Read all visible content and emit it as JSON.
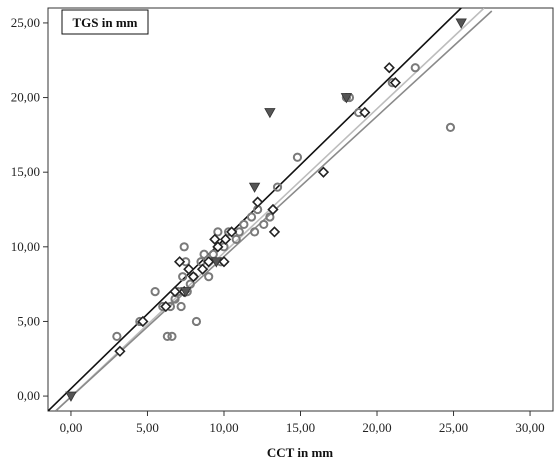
{
  "chart_data": {
    "type": "scatter",
    "title": "",
    "xlabel": "CCT in mm",
    "ylabel": "TGS in mm",
    "xlim": [
      -1.5,
      31.5
    ],
    "ylim": [
      -1.0,
      26.0
    ],
    "x_ticks": [
      0,
      5,
      10,
      15,
      20,
      25,
      30
    ],
    "y_ticks": [
      0,
      5,
      10,
      15,
      20,
      25
    ],
    "x_tick_labels": [
      "0,00",
      "5,00",
      "10,00",
      "15,00",
      "20,00",
      "25,00",
      "30,00"
    ],
    "y_tick_labels": [
      "0,00",
      "5,00",
      "10,00",
      "15,00",
      "20,00",
      "25,00"
    ],
    "grid": false,
    "legend": "none",
    "colors": {
      "circle_series": "#7a7a7a",
      "diamond_series": "#222222",
      "triangle_series": "#555555",
      "identity_line": "#111111",
      "fit_line_light": "#bdbdbd",
      "fit_line_mid": "#8a8a8a"
    },
    "series": [
      {
        "marker": "circle",
        "points": [
          [
            3.0,
            4.0
          ],
          [
            4.5,
            5.0
          ],
          [
            5.5,
            7.0
          ],
          [
            6.0,
            6.0
          ],
          [
            6.3,
            4.0
          ],
          [
            6.6,
            4.0
          ],
          [
            6.5,
            6.0
          ],
          [
            6.8,
            6.5
          ],
          [
            7.0,
            7.0
          ],
          [
            7.2,
            6.0
          ],
          [
            7.3,
            8.0
          ],
          [
            7.4,
            10.0
          ],
          [
            7.5,
            9.0
          ],
          [
            7.6,
            7.0
          ],
          [
            7.8,
            7.5
          ],
          [
            8.0,
            8.0
          ],
          [
            8.2,
            5.0
          ],
          [
            8.5,
            9.0
          ],
          [
            8.7,
            9.5
          ],
          [
            9.0,
            8.0
          ],
          [
            9.3,
            9.5
          ],
          [
            9.6,
            11.0
          ],
          [
            9.8,
            9.0
          ],
          [
            10.0,
            10.0
          ],
          [
            10.3,
            11.0
          ],
          [
            10.8,
            10.5
          ],
          [
            11.0,
            11.0
          ],
          [
            11.3,
            11.5
          ],
          [
            11.8,
            12.0
          ],
          [
            12.0,
            11.0
          ],
          [
            12.2,
            12.5
          ],
          [
            12.6,
            11.5
          ],
          [
            13.0,
            12.0
          ],
          [
            13.5,
            14.0
          ],
          [
            14.8,
            16.0
          ],
          [
            18.0,
            20.0
          ],
          [
            18.2,
            20.0
          ],
          [
            18.8,
            19.0
          ],
          [
            21.0,
            21.0
          ],
          [
            22.5,
            22.0
          ],
          [
            24.8,
            18.0
          ]
        ]
      },
      {
        "marker": "diamond",
        "points": [
          [
            3.2,
            3.0
          ],
          [
            4.7,
            5.0
          ],
          [
            6.2,
            6.0
          ],
          [
            6.8,
            7.0
          ],
          [
            7.1,
            9.0
          ],
          [
            7.4,
            7.0
          ],
          [
            7.7,
            8.5
          ],
          [
            8.0,
            8.0
          ],
          [
            8.6,
            8.5
          ],
          [
            9.0,
            9.0
          ],
          [
            9.4,
            10.5
          ],
          [
            9.6,
            10.0
          ],
          [
            10.0,
            9.0
          ],
          [
            10.1,
            10.5
          ],
          [
            10.5,
            11.0
          ],
          [
            12.2,
            13.0
          ],
          [
            13.2,
            12.5
          ],
          [
            13.3,
            11.0
          ],
          [
            16.5,
            15.0
          ],
          [
            19.2,
            19.0
          ],
          [
            20.8,
            22.0
          ],
          [
            21.2,
            21.0
          ]
        ]
      },
      {
        "marker": "triangle-down",
        "points": [
          [
            0.0,
            0.0
          ],
          [
            7.5,
            7.0
          ],
          [
            9.5,
            9.0
          ],
          [
            12.0,
            14.0
          ],
          [
            13.0,
            19.0
          ],
          [
            18.0,
            20.0
          ],
          [
            25.5,
            25.0
          ]
        ]
      }
    ],
    "lines": [
      {
        "name_role": "identity",
        "style": "black",
        "x": [
          -1.5,
          25.5
        ],
        "y": [
          -1.0,
          26.0
        ]
      },
      {
        "name_role": "fit",
        "style": "light-gray",
        "x": [
          -1.0,
          27.0
        ],
        "y": [
          -1.0,
          26.0
        ]
      },
      {
        "name_role": "fit",
        "style": "mid-gray",
        "x": [
          -1.0,
          27.5
        ],
        "y": [
          -1.0,
          25.8
        ]
      }
    ]
  }
}
